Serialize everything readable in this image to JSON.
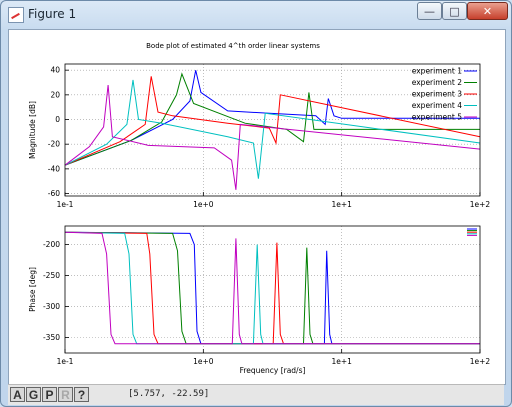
{
  "window": {
    "title": "Figure 1",
    "minimize_glyph": "—",
    "maximize_glyph": "□",
    "close_glyph": "✕"
  },
  "figure": {
    "title": "Bode plot of estimated 4^th order linear systems"
  },
  "toolbar": {
    "buttons": [
      {
        "label": "A",
        "enabled": true
      },
      {
        "label": "G",
        "enabled": true
      },
      {
        "label": "P",
        "enabled": true
      },
      {
        "label": "R",
        "enabled": false
      },
      {
        "label": "?",
        "enabled": true
      }
    ]
  },
  "statusbar": {
    "coords": "[5.757, -22.59]"
  },
  "chart_data": [
    {
      "type": "line",
      "xscale": "log",
      "xlim": [
        0.1,
        100
      ],
      "ylim": [
        -62,
        45
      ],
      "xticks": [
        0.1,
        1,
        10,
        100
      ],
      "xticklabels": [
        "1e-1",
        "1e+0",
        "1e+1",
        "1e+2"
      ],
      "yticks": [
        -60,
        -40,
        -20,
        0,
        20,
        40
      ],
      "yticklabels": [
        "-60",
        "-40",
        "-20",
        "0",
        "20",
        "40"
      ],
      "ylabel": "Magnitude [dB]",
      "grid": "dotted",
      "legend_position": "top-right",
      "series": [
        {
          "name": "experiment 1",
          "color": "#0000ff",
          "x": [
            0.1,
            0.3,
            0.6,
            0.8,
            0.88,
            0.96,
            1.5,
            3.0,
            6.5,
            7.6,
            8.0,
            8.8,
            10,
            100
          ],
          "y": [
            -37,
            -17,
            0,
            15,
            40,
            22,
            7,
            5,
            3,
            -4,
            17,
            3,
            1,
            1
          ]
        },
        {
          "name": "experiment 2",
          "color": "#008000",
          "x": [
            0.1,
            0.3,
            0.5,
            0.64,
            0.7,
            0.85,
            2.0,
            4.0,
            5.3,
            5.8,
            6.3,
            100
          ],
          "y": [
            -37,
            -17,
            -2,
            20,
            37,
            13,
            -3,
            -8,
            -18,
            22,
            -8,
            -8
          ]
        },
        {
          "name": "experiment 3",
          "color": "#ff0000",
          "x": [
            0.1,
            0.25,
            0.38,
            0.42,
            0.47,
            0.6,
            1.5,
            3.0,
            3.35,
            3.6,
            100
          ],
          "y": [
            -37,
            -18,
            -4,
            35,
            6,
            3,
            -3,
            -7,
            -19,
            20,
            -14
          ]
        },
        {
          "name": "experiment 4",
          "color": "#00c0c0",
          "x": [
            0.1,
            0.2,
            0.28,
            0.31,
            0.34,
            0.5,
            1.5,
            2.3,
            2.5,
            2.8,
            100
          ],
          "y": [
            -37,
            -20,
            -4,
            32,
            0,
            -3,
            -14,
            -19,
            -48,
            5,
            -19
          ]
        },
        {
          "name": "experiment 5",
          "color": "#c000c0",
          "x": [
            0.1,
            0.15,
            0.19,
            0.205,
            0.22,
            0.4,
            1.2,
            1.6,
            1.72,
            1.85,
            100
          ],
          "y": [
            -37,
            -22,
            -6,
            28,
            -14,
            -21,
            -23,
            -33,
            -57,
            -4,
            -24
          ]
        }
      ]
    },
    {
      "type": "line",
      "xscale": "log",
      "xlim": [
        0.1,
        100
      ],
      "ylim": [
        -375,
        -170
      ],
      "xticks": [
        0.1,
        1,
        10,
        100
      ],
      "xticklabels": [
        "1e-1",
        "1e+0",
        "1e+1",
        "1e+2"
      ],
      "yticks": [
        -350,
        -300,
        -250,
        -200
      ],
      "yticklabels": [
        "-350",
        "-300",
        "-250",
        "-200"
      ],
      "xlabel": "Frequency [rad/s]",
      "ylabel": "Phase [deg]",
      "grid": "dotted",
      "series": [
        {
          "name": "experiment 1",
          "color": "#0000ff",
          "x": [
            0.1,
            0.8,
            0.86,
            0.9,
            0.96,
            7.5,
            7.8,
            8.2,
            8.5,
            100
          ],
          "y": [
            -180,
            -182,
            -200,
            -340,
            -360,
            -360,
            -210,
            -345,
            -360,
            -360
          ]
        },
        {
          "name": "experiment 2",
          "color": "#008000",
          "x": [
            0.1,
            0.6,
            0.65,
            0.7,
            0.75,
            5.3,
            5.6,
            5.9,
            6.2,
            100
          ],
          "y": [
            -180,
            -182,
            -210,
            -340,
            -360,
            -360,
            -205,
            -345,
            -360,
            -360
          ]
        },
        {
          "name": "experiment 3",
          "color": "#ff0000",
          "x": [
            0.1,
            0.39,
            0.41,
            0.44,
            0.47,
            3.2,
            3.4,
            3.6,
            3.8,
            100
          ],
          "y": [
            -180,
            -182,
            -215,
            -345,
            -360,
            -360,
            -197,
            -345,
            -360,
            -360
          ]
        },
        {
          "name": "experiment 4",
          "color": "#00c0c0",
          "x": [
            0.1,
            0.27,
            0.29,
            0.31,
            0.33,
            2.3,
            2.45,
            2.6,
            2.7,
            100
          ],
          "y": [
            -180,
            -182,
            -215,
            -345,
            -360,
            -360,
            -200,
            -345,
            -360,
            -360
          ]
        },
        {
          "name": "experiment 5",
          "color": "#c000c0",
          "x": [
            0.1,
            0.185,
            0.2,
            0.215,
            0.23,
            1.62,
            1.72,
            1.82,
            1.9,
            100
          ],
          "y": [
            -180,
            -182,
            -215,
            -345,
            -360,
            -360,
            -190,
            -345,
            -360,
            -360
          ]
        }
      ]
    }
  ]
}
